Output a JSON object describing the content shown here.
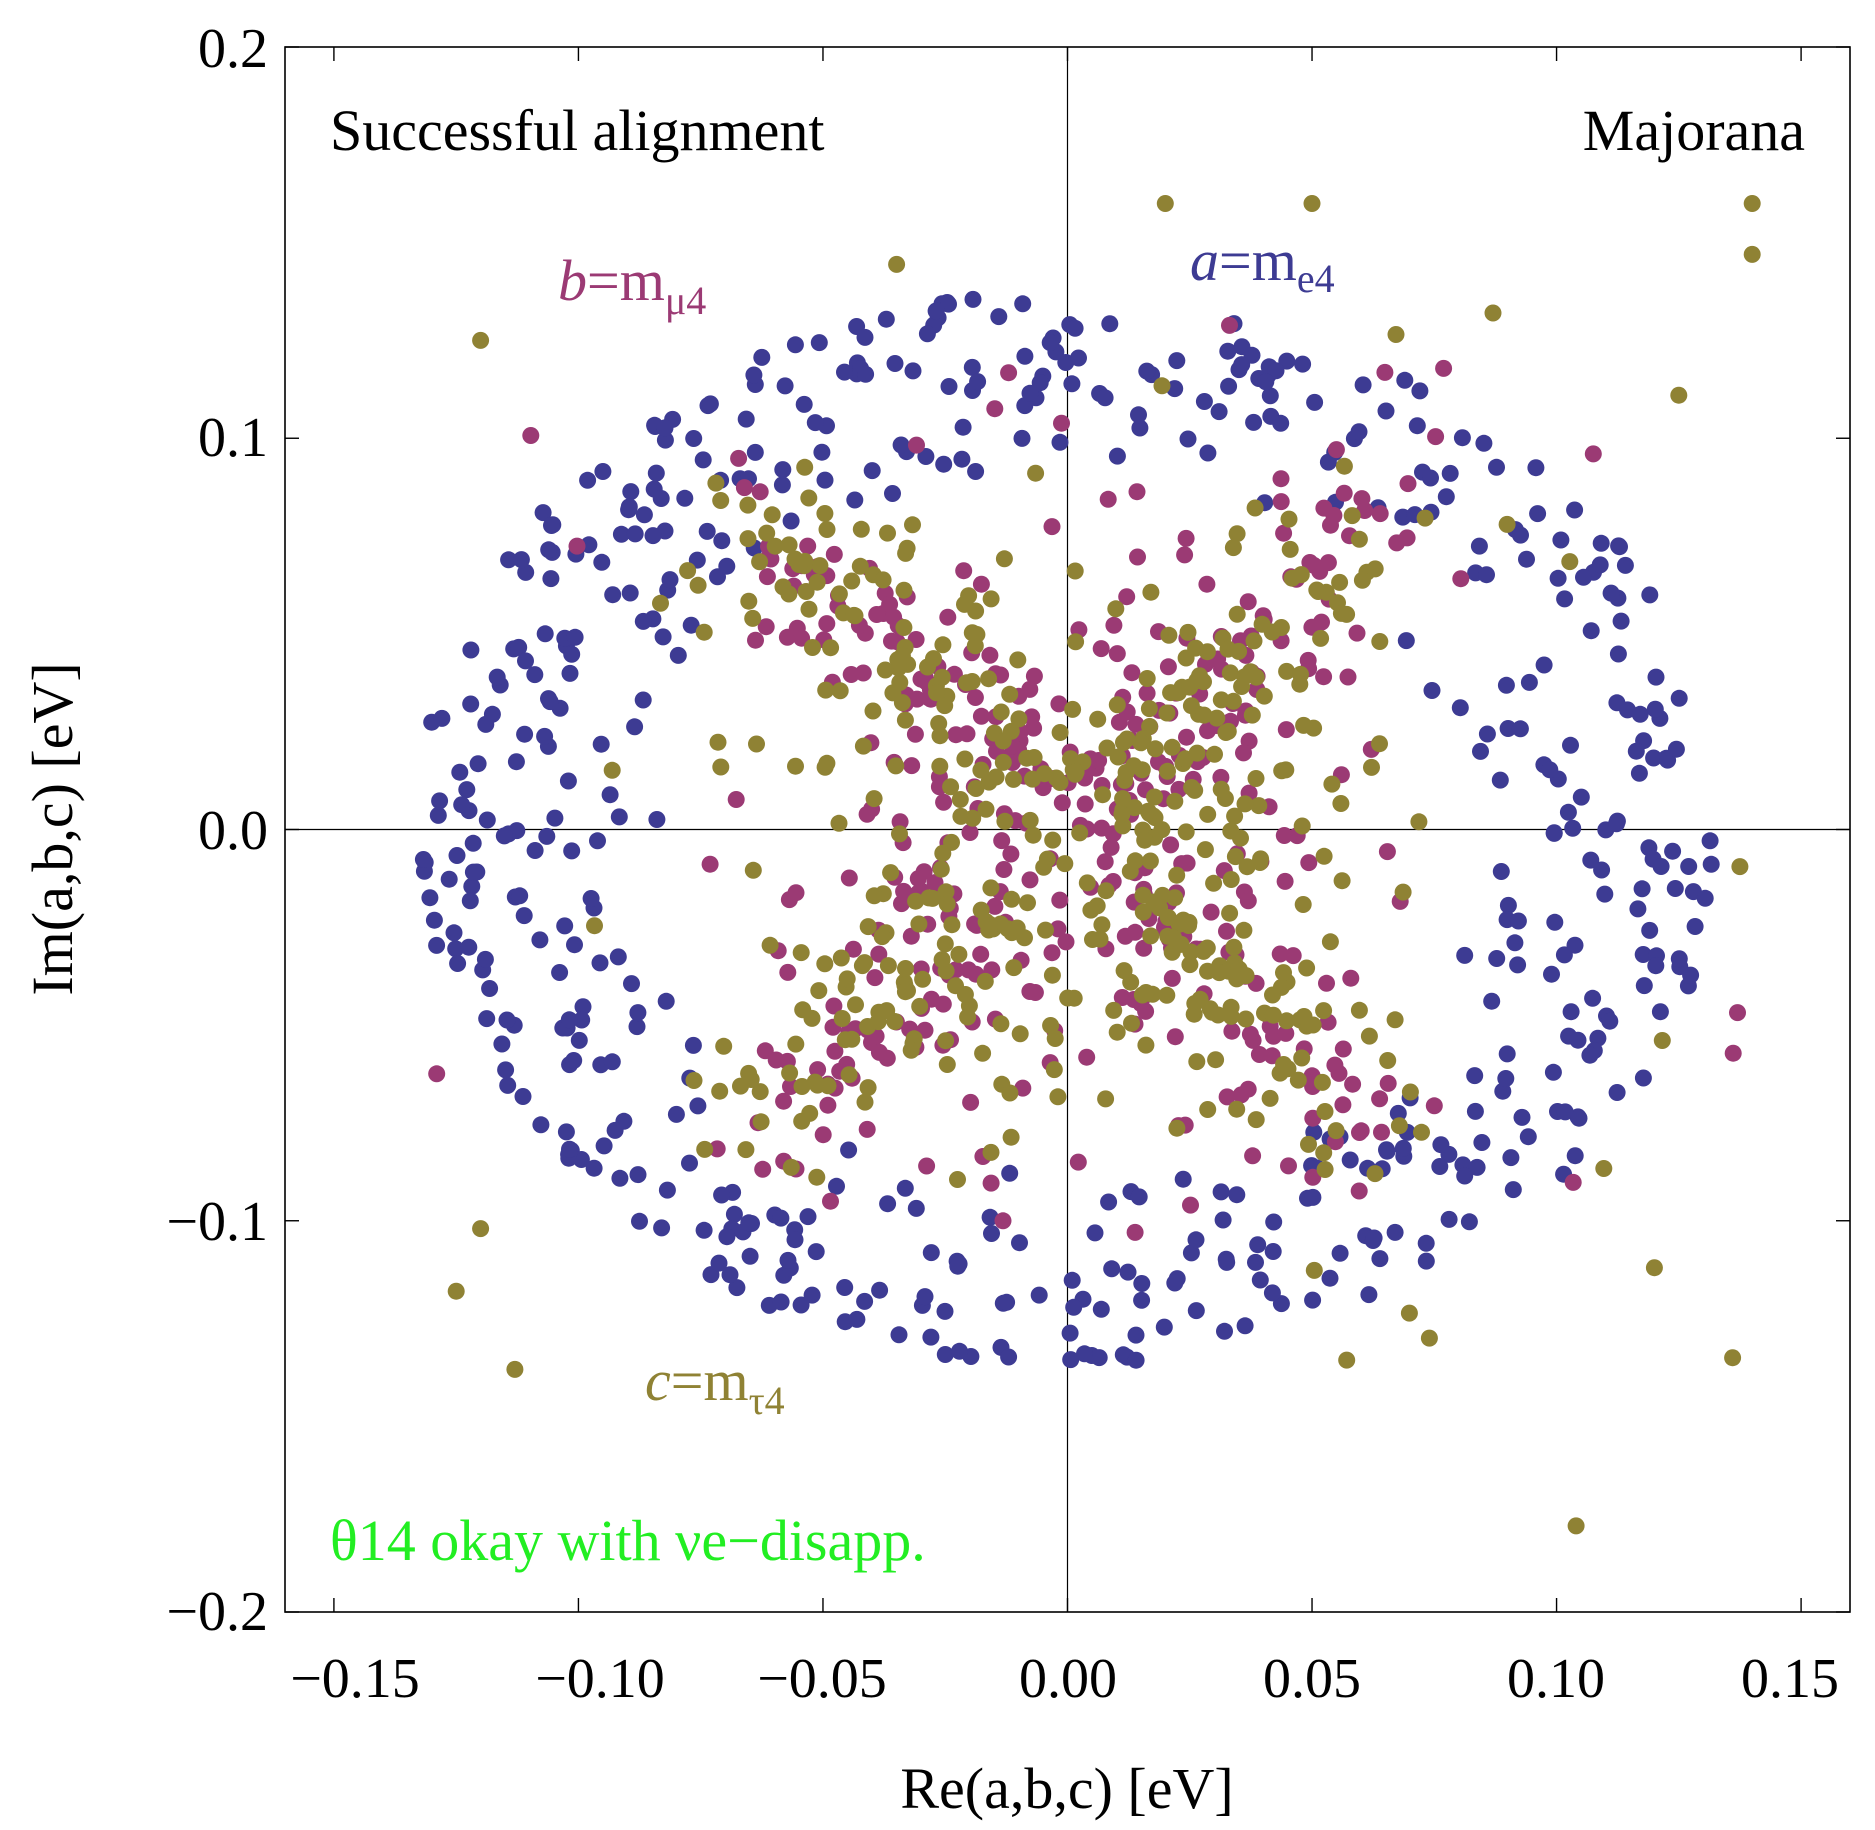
{
  "chart_data": {
    "type": "scatter",
    "xlabel": "Re(a,b,c) [eV]",
    "ylabel": "Im(a,b,c) [eV]",
    "xlim": [
      -0.16,
      0.16
    ],
    "ylim": [
      -0.2,
      0.2
    ],
    "x_ticks": [
      -0.15,
      -0.1,
      -0.05,
      0.0,
      0.05,
      0.1,
      0.15
    ],
    "x_tick_labels": [
      "−0.15",
      "−0.10",
      "−0.05",
      "0.00",
      "0.05",
      "0.10",
      "0.15"
    ],
    "y_ticks": [
      0.2,
      0.1,
      0.0,
      -0.1,
      -0.2
    ],
    "y_tick_labels": [
      "0.2",
      "0.1",
      "0.0",
      "−0.1",
      "−0.2"
    ],
    "annotations": {
      "top_left": "Successful alignment",
      "top_right": "Majorana",
      "bottom_note": "θ14 okay with νe−disapp."
    },
    "series": [
      {
        "name": "a=me4",
        "label_lhs": "a",
        "label_eq": "=m",
        "label_sub": "e4",
        "color": "#3d3b93",
        "distribution": {
          "shape": "ring",
          "radius_min": 0.085,
          "radius_max": 0.14,
          "count": 560,
          "seed": 11
        }
      },
      {
        "name": "b=mμ4",
        "label_lhs": "b",
        "label_eq": "=m",
        "label_sub": "μ4",
        "color": "#9b3a74",
        "distribution": {
          "shape": "x-arms-and-core",
          "arm_length": 0.1,
          "core_radius": 0.045,
          "count": 420,
          "seed": 23
        }
      },
      {
        "name": "c=mτ4",
        "label_lhs": "c",
        "label_eq": "=m",
        "label_sub": "τ4",
        "color": "#8f8234",
        "distribution": {
          "shape": "x-arms-and-core",
          "arm_length": 0.105,
          "core_radius": 0.05,
          "count": 480,
          "seed": 37
        },
        "outliers": [
          {
            "x": 0.02,
            "y": 0.16
          },
          {
            "x": 0.05,
            "y": 0.16
          },
          {
            "x": 0.14,
            "y": 0.16
          },
          {
            "x": 0.14,
            "y": 0.147
          },
          {
            "x": -0.12,
            "y": 0.125
          },
          {
            "x": 0.087,
            "y": 0.132
          },
          {
            "x": 0.125,
            "y": 0.111
          },
          {
            "x": -0.125,
            "y": -0.118
          },
          {
            "x": -0.12,
            "y": -0.102
          },
          {
            "x": -0.113,
            "y": -0.138
          },
          {
            "x": 0.104,
            "y": -0.178
          },
          {
            "x": 0.136,
            "y": -0.135
          },
          {
            "x": 0.12,
            "y": -0.112
          },
          {
            "x": 0.074,
            "y": -0.13
          }
        ]
      }
    ]
  }
}
